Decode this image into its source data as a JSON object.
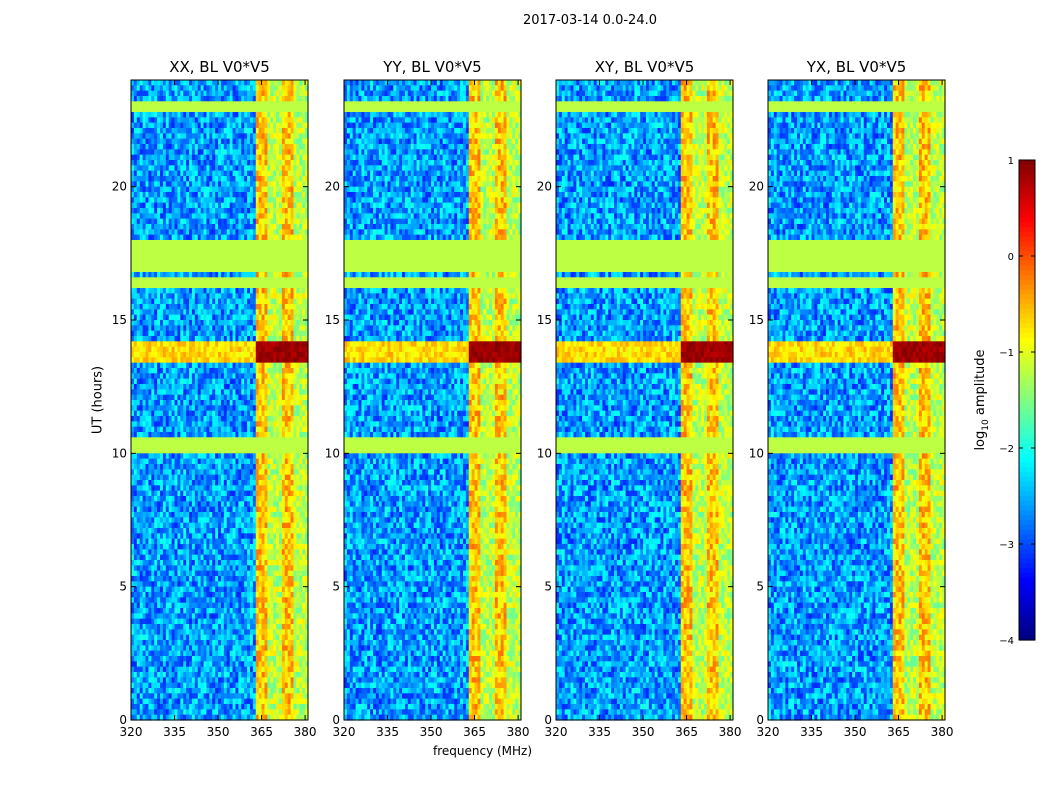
{
  "figure_title": "2017-03-14 0.0-24.0",
  "chart_data": {
    "type": "heatmap",
    "ylabel": "UT (hours)",
    "xlabel": "frequency (MHz)",
    "xlim": [
      320,
      381
    ],
    "ylim": [
      0,
      24
    ],
    "xticks": [
      320,
      335,
      350,
      365,
      380
    ],
    "xtick_labels": [
      "320",
      "335",
      "350",
      "365",
      "380"
    ],
    "yticks": [
      0,
      5,
      10,
      15,
      20
    ],
    "ytick_labels": [
      "0",
      "5",
      "10",
      "15",
      "20"
    ],
    "panels": [
      {
        "title": "XX, BL V0*V5"
      },
      {
        "title": "YY, BL V0*V5"
      },
      {
        "title": "XY, BL V0*V5"
      },
      {
        "title": "YX, BL V0*V5"
      }
    ],
    "colorbar": {
      "label_base": "log",
      "label_sub": "10",
      "label_rest": " amplitude",
      "range": [
        -4,
        1
      ],
      "ticks": [
        1,
        0,
        -1,
        -2,
        -3,
        -4
      ],
      "tick_labels": [
        "1",
        "0",
        "−1",
        "−2",
        "−3",
        "−4"
      ],
      "colormap": "jet"
    },
    "flagged_value": -1.2,
    "flagged_time_bands_hours": [
      [
        10.1,
        10.6
      ],
      [
        16.8,
        17.9
      ],
      [
        16.2,
        16.5
      ],
      [
        22.9,
        23.2
      ]
    ],
    "strong_rfi_band_mhz": [
      363,
      381
    ],
    "strong_rfi_peak_hours": [
      13.4,
      14.2
    ]
  },
  "colors": {
    "axis": "#000000",
    "background": "#ffffff",
    "flag_color": "#9cff5a"
  }
}
